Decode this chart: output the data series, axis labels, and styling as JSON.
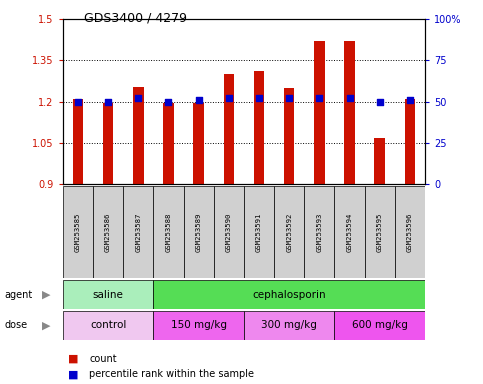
{
  "title": "GDS3400 / 4279",
  "samples": [
    "GSM253585",
    "GSM253586",
    "GSM253587",
    "GSM253588",
    "GSM253589",
    "GSM253590",
    "GSM253591",
    "GSM253592",
    "GSM253593",
    "GSM253594",
    "GSM253595",
    "GSM253596"
  ],
  "count_values": [
    1.21,
    1.195,
    1.255,
    1.195,
    1.195,
    1.3,
    1.31,
    1.25,
    1.42,
    1.42,
    1.07,
    1.21
  ],
  "percentile_values": [
    50,
    50,
    52,
    50,
    51,
    52,
    52,
    52,
    52,
    52,
    50,
    51
  ],
  "ylim_left": [
    0.9,
    1.5
  ],
  "ylim_right": [
    0,
    100
  ],
  "yticks_left": [
    0.9,
    1.05,
    1.2,
    1.35,
    1.5
  ],
  "yticks_right": [
    0,
    25,
    50,
    75,
    100
  ],
  "ytick_labels_left": [
    "0.9",
    "1.05",
    "1.2",
    "1.35",
    "1.5"
  ],
  "ytick_labels_right": [
    "0",
    "25",
    "50",
    "75",
    "100%"
  ],
  "bar_color": "#cc1100",
  "dot_color": "#0000cc",
  "agent_groups": [
    {
      "label": "saline",
      "start": 0,
      "end": 3,
      "color": "#aaeebb"
    },
    {
      "label": "cephalosporin",
      "start": 3,
      "end": 12,
      "color": "#55dd55"
    }
  ],
  "dose_groups": [
    {
      "label": "control",
      "start": 0,
      "end": 3,
      "color": "#f0c8f0"
    },
    {
      "label": "150 mg/kg",
      "start": 3,
      "end": 6,
      "color": "#ee66ee"
    },
    {
      "label": "300 mg/kg",
      "start": 6,
      "end": 9,
      "color": "#ee88ee"
    },
    {
      "label": "600 mg/kg",
      "start": 9,
      "end": 12,
      "color": "#ee55ee"
    }
  ],
  "legend_count_color": "#cc1100",
  "legend_dot_color": "#0000cc",
  "background_color": "#ffffff",
  "plot_bg_color": "#ffffff",
  "bar_width": 0.35
}
